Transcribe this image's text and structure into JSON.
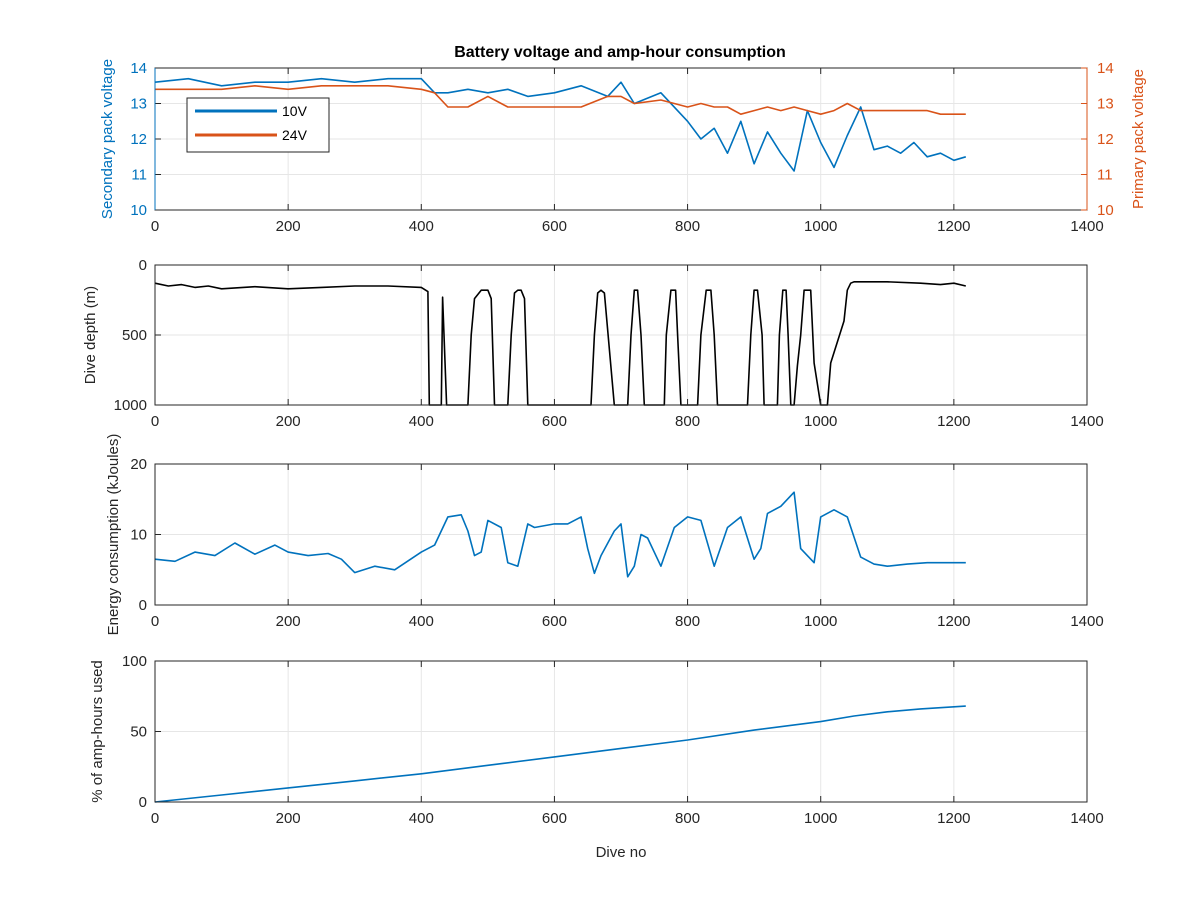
{
  "figure": {
    "title": "Battery voltage and amp-hour consumption",
    "colors": {
      "blue": "#0072BD",
      "orange": "#D95319",
      "black": "#000000",
      "grid": "#E6E6E6"
    }
  },
  "chart_data": [
    {
      "type": "line",
      "id": "voltage",
      "title": "Battery voltage and amp-hour consumption",
      "xlabel": "",
      "ylabel": "Secondary pack voltage",
      "ylabel_right": "Primary pack voltage",
      "xlim": [
        0,
        1400
      ],
      "ylim": [
        10,
        14
      ],
      "ylim_right": [
        10,
        14
      ],
      "xticks": [
        0,
        200,
        400,
        600,
        800,
        1000,
        1200,
        1400
      ],
      "yticks": [
        10,
        11,
        12,
        13,
        14
      ],
      "grid": true,
      "legend": "top-left",
      "series": [
        {
          "name": "10V",
          "color": "#0072BD",
          "x": [
            0,
            50,
            100,
            150,
            200,
            250,
            300,
            350,
            400,
            420,
            440,
            470,
            500,
            530,
            560,
            600,
            640,
            680,
            700,
            720,
            760,
            800,
            820,
            840,
            860,
            880,
            900,
            920,
            940,
            960,
            980,
            1000,
            1020,
            1040,
            1060,
            1080,
            1100,
            1120,
            1140,
            1160,
            1180,
            1200,
            1218
          ],
          "y": [
            13.6,
            13.7,
            13.5,
            13.6,
            13.6,
            13.7,
            13.6,
            13.7,
            13.7,
            13.3,
            13.3,
            13.4,
            13.3,
            13.4,
            13.2,
            13.3,
            13.5,
            13.2,
            13.6,
            13.0,
            13.3,
            12.5,
            12.0,
            12.3,
            11.6,
            12.5,
            11.3,
            12.2,
            11.6,
            11.1,
            12.8,
            11.9,
            11.2,
            12.1,
            12.9,
            11.7,
            11.8,
            11.6,
            11.9,
            11.5,
            11.6,
            11.4,
            11.5
          ]
        },
        {
          "name": "24V",
          "color": "#D95319",
          "x": [
            0,
            50,
            100,
            150,
            200,
            250,
            300,
            350,
            400,
            420,
            440,
            470,
            500,
            530,
            560,
            600,
            640,
            680,
            700,
            720,
            760,
            800,
            820,
            840,
            860,
            880,
            900,
            920,
            940,
            960,
            980,
            1000,
            1020,
            1040,
            1060,
            1080,
            1100,
            1120,
            1140,
            1160,
            1180,
            1200,
            1218
          ],
          "y": [
            13.4,
            13.4,
            13.4,
            13.5,
            13.4,
            13.5,
            13.5,
            13.5,
            13.4,
            13.3,
            12.9,
            12.9,
            13.2,
            12.9,
            12.9,
            12.9,
            12.9,
            13.2,
            13.2,
            13.0,
            13.1,
            12.9,
            13.0,
            12.9,
            12.9,
            12.7,
            12.8,
            12.9,
            12.8,
            12.9,
            12.8,
            12.7,
            12.8,
            13.0,
            12.8,
            12.8,
            12.8,
            12.8,
            12.8,
            12.8,
            12.7,
            12.7,
            12.7
          ]
        }
      ]
    },
    {
      "type": "line",
      "id": "depth",
      "xlabel": "",
      "ylabel": "Dive depth (m)",
      "xlim": [
        0,
        1400
      ],
      "ylim": [
        0,
        1000
      ],
      "y_reversed": true,
      "xticks": [
        0,
        200,
        400,
        600,
        800,
        1000,
        1200,
        1400
      ],
      "yticks": [
        0,
        500,
        1000
      ],
      "grid": true,
      "series": [
        {
          "name": "",
          "color": "#000000",
          "x": [
            0,
            20,
            40,
            60,
            80,
            100,
            150,
            200,
            250,
            300,
            350,
            400,
            410,
            412,
            418,
            420,
            430,
            432,
            438,
            440,
            470,
            475,
            480,
            490,
            500,
            505,
            510,
            530,
            535,
            540,
            545,
            550,
            555,
            560,
            640,
            655,
            660,
            665,
            670,
            675,
            690,
            710,
            715,
            720,
            725,
            730,
            735,
            745,
            765,
            768,
            775,
            782,
            785,
            790,
            800,
            815,
            820,
            828,
            835,
            840,
            845,
            850,
            890,
            895,
            900,
            905,
            912,
            915,
            935,
            938,
            943,
            948,
            951,
            955,
            960,
            965,
            970,
            975,
            985,
            990,
            1000,
            1005,
            1008,
            1010,
            1015,
            1035,
            1040,
            1045,
            1050,
            1060,
            1100,
            1150,
            1180,
            1200,
            1218
          ],
          "y": [
            130,
            150,
            140,
            160,
            150,
            170,
            155,
            170,
            160,
            150,
            150,
            160,
            190,
            1000,
            1000,
            1000,
            1000,
            230,
            1000,
            1000,
            1000,
            500,
            240,
            180,
            180,
            240,
            1000,
            1000,
            500,
            200,
            180,
            180,
            240,
            1000,
            1000,
            1000,
            500,
            200,
            180,
            200,
            1000,
            1000,
            500,
            180,
            180,
            500,
            1000,
            1000,
            1000,
            500,
            180,
            180,
            500,
            1000,
            1000,
            1000,
            500,
            180,
            180,
            500,
            1000,
            1000,
            1000,
            500,
            180,
            180,
            500,
            1000,
            1000,
            500,
            180,
            180,
            500,
            1000,
            1000,
            720,
            500,
            180,
            180,
            700,
            1000,
            1000,
            1000,
            1000,
            700,
            400,
            180,
            130,
            120,
            120,
            120,
            130,
            140,
            130,
            150
          ]
        }
      ]
    },
    {
      "type": "line",
      "id": "energy",
      "xlabel": "",
      "ylabel": "Energy consumption (kJoules)",
      "xlim": [
        0,
        1400
      ],
      "ylim": [
        0,
        20
      ],
      "xticks": [
        0,
        200,
        400,
        600,
        800,
        1000,
        1200,
        1400
      ],
      "yticks": [
        0,
        10,
        20
      ],
      "grid": true,
      "series": [
        {
          "name": "",
          "color": "#0072BD",
          "x": [
            0,
            30,
            60,
            90,
            120,
            150,
            180,
            200,
            230,
            260,
            280,
            300,
            330,
            360,
            400,
            420,
            440,
            460,
            470,
            480,
            490,
            500,
            520,
            530,
            545,
            560,
            570,
            600,
            620,
            640,
            650,
            660,
            670,
            690,
            700,
            710,
            720,
            730,
            740,
            760,
            780,
            800,
            820,
            840,
            860,
            880,
            900,
            910,
            920,
            940,
            960,
            970,
            990,
            1000,
            1020,
            1040,
            1060,
            1080,
            1100,
            1130,
            1160,
            1190,
            1218
          ],
          "y": [
            6.5,
            6.2,
            7.5,
            7.0,
            8.8,
            7.2,
            8.5,
            7.5,
            7.0,
            7.3,
            6.5,
            4.6,
            5.5,
            5.0,
            7.5,
            8.5,
            12.5,
            12.8,
            10.5,
            7.0,
            7.5,
            12.0,
            11.0,
            6.0,
            5.5,
            11.5,
            11.0,
            11.5,
            11.5,
            12.5,
            8.0,
            4.5,
            7.0,
            10.5,
            11.5,
            4.0,
            5.5,
            10.0,
            9.5,
            5.5,
            11.0,
            12.5,
            12.0,
            5.5,
            11.0,
            12.5,
            6.5,
            8.0,
            13.0,
            14.0,
            16.0,
            8.0,
            6.0,
            12.5,
            13.5,
            12.5,
            6.8,
            5.8,
            5.5,
            5.8,
            6.0,
            6.0,
            6.0
          ]
        }
      ]
    },
    {
      "type": "line",
      "id": "amphours",
      "xlabel": "Dive no",
      "ylabel": "% of amp-hours used",
      "xlim": [
        0,
        1400
      ],
      "ylim": [
        0,
        100
      ],
      "xticks": [
        0,
        200,
        400,
        600,
        800,
        1000,
        1200,
        1400
      ],
      "yticks": [
        0,
        50,
        100
      ],
      "grid": true,
      "series": [
        {
          "name": "",
          "color": "#0072BD",
          "x": [
            0,
            100,
            200,
            300,
            400,
            500,
            600,
            700,
            800,
            900,
            1000,
            1050,
            1100,
            1150,
            1218
          ],
          "y": [
            0,
            5,
            10,
            15,
            20,
            26,
            32,
            38,
            44,
            51,
            57,
            61,
            64,
            66,
            68
          ]
        }
      ]
    }
  ]
}
